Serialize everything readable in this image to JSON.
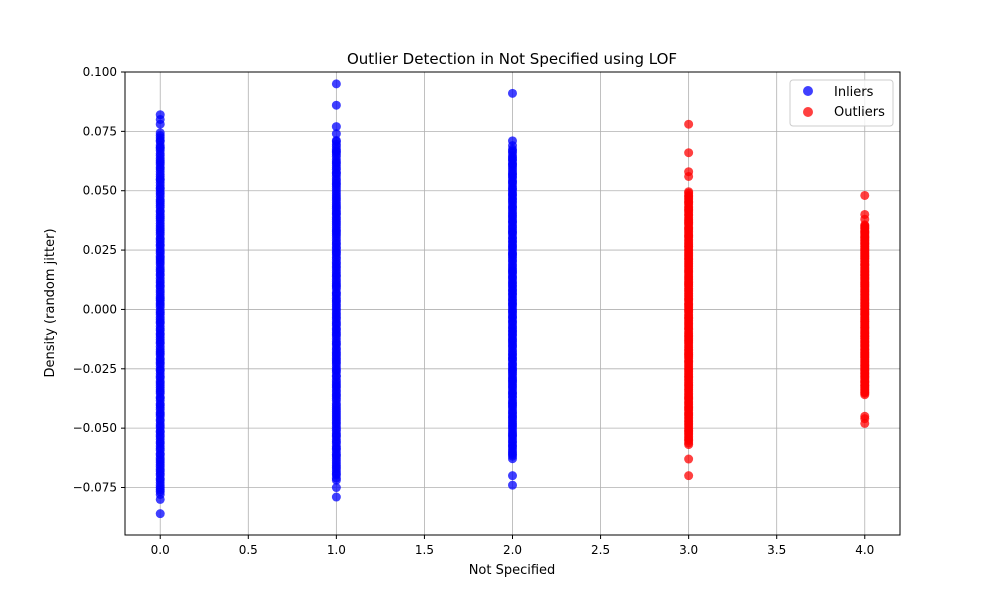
{
  "chart_data": {
    "type": "scatter",
    "title": "Outlier Detection in Not Specified using LOF",
    "xlabel": "Not Specified",
    "ylabel": "Density (random jitter)",
    "xlim": [
      -0.2,
      4.2
    ],
    "ylim": [
      -0.095,
      0.1
    ],
    "xticks": [
      "0.0",
      "0.5",
      "1.0",
      "1.5",
      "2.0",
      "2.5",
      "3.0",
      "3.5",
      "4.0"
    ],
    "yticks": [
      "−0.075",
      "−0.050",
      "−0.025",
      "0.000",
      "0.025",
      "0.050",
      "0.075",
      "0.100"
    ],
    "grid": true,
    "legend_position": "top-right",
    "series": [
      {
        "name": "Inliers",
        "color": "#0000ff",
        "groups": [
          {
            "x": 0,
            "band": [
              -0.078,
              0.075
            ],
            "extremes": [
              0.082,
              0.08,
              0.078,
              -0.08,
              -0.086
            ]
          },
          {
            "x": 1,
            "band": [
              -0.072,
              0.072
            ],
            "extremes": [
              0.095,
              0.086,
              0.077,
              0.074,
              -0.075,
              -0.079
            ]
          },
          {
            "x": 2,
            "band": [
              -0.063,
              0.068
            ],
            "extremes": [
              0.091,
              0.071,
              0.069,
              -0.07,
              -0.074
            ]
          }
        ]
      },
      {
        "name": "Outliers",
        "color": "#ff0000",
        "groups": [
          {
            "x": 3,
            "band": [
              -0.057,
              0.05
            ],
            "extremes": [
              0.078,
              0.066,
              0.058,
              0.056,
              -0.063,
              -0.07
            ]
          },
          {
            "x": 4,
            "band": [
              -0.036,
              0.036
            ],
            "extremes": [
              0.048,
              0.04,
              0.038,
              -0.045,
              -0.046,
              -0.048
            ]
          }
        ]
      }
    ]
  }
}
